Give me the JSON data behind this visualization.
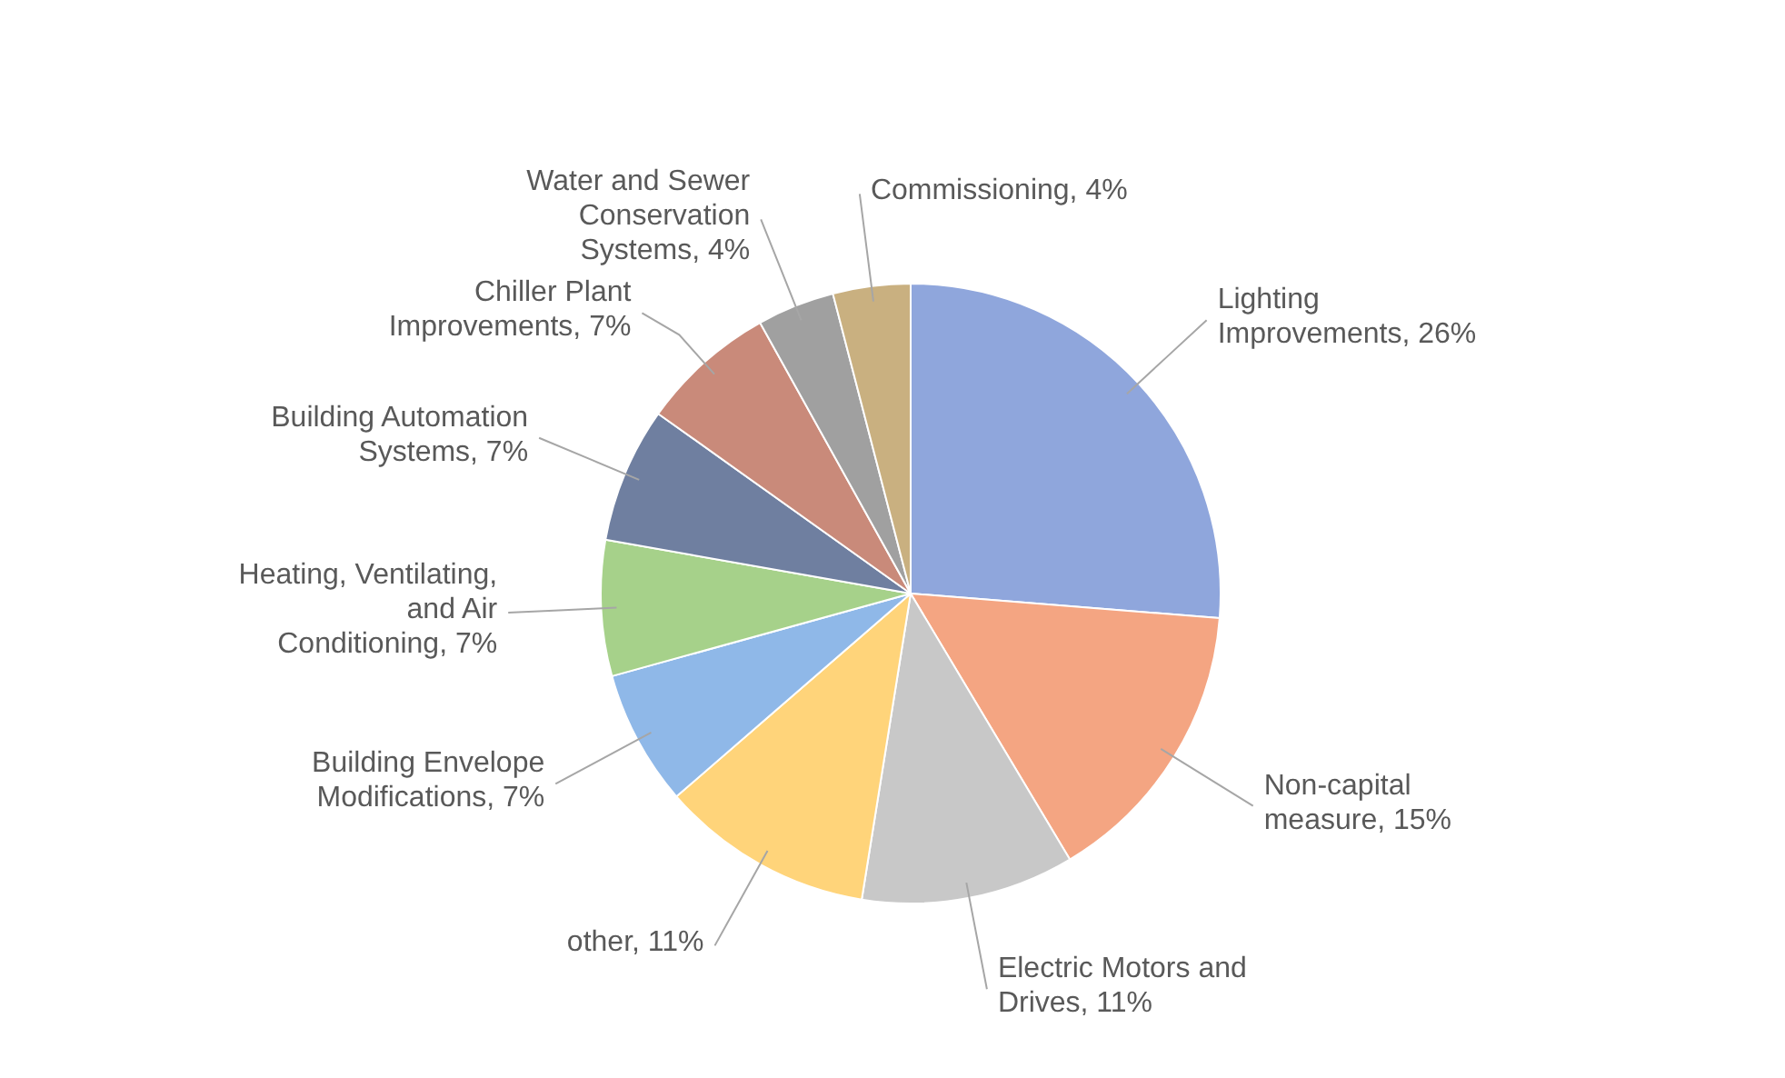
{
  "chart_data": {
    "type": "pie",
    "categories": [
      "Lighting Improvements",
      "Non-capital measure",
      "Electric Motors and Drives",
      "other",
      "Building Envelope Modifications",
      "Heating, Ventilating, and Air Conditioning",
      "Building Automation Systems",
      "Chiller Plant Improvements",
      "Water and Sewer Conservation Systems",
      "Commissioning"
    ],
    "values": [
      26,
      15,
      11,
      11,
      7,
      7,
      7,
      7,
      4,
      4
    ],
    "value_labels": [
      "26%",
      "15%",
      "11%",
      "11%",
      "7%",
      "7%",
      "7%",
      "7%",
      "4%",
      "4%"
    ],
    "colors": [
      "#8fa6dc",
      "#f4a582",
      "#c8c8c8",
      "#ffd47a",
      "#8fb8e8",
      "#a6d18a",
      "#6f7fa0",
      "#c98a7a",
      "#a0a0a0",
      "#c9b080"
    ],
    "legend": false
  }
}
